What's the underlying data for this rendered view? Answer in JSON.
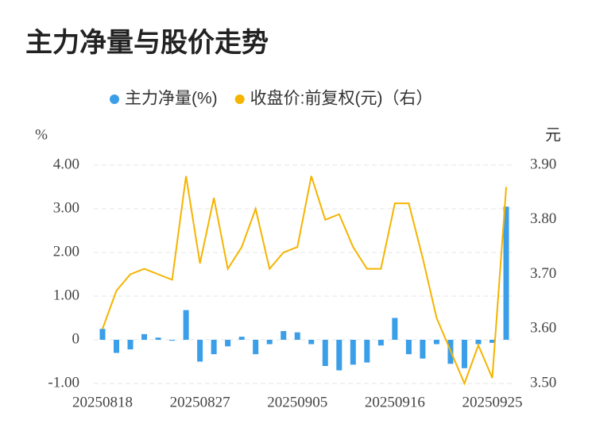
{
  "chart_data": {
    "type": "bar_line",
    "title": "主力净量与股价走势",
    "y_unit": "%",
    "y2_unit": "元",
    "categories": [
      "20250818",
      null,
      null,
      null,
      null,
      null,
      null,
      "20250827",
      null,
      null,
      null,
      null,
      null,
      null,
      "20250905",
      null,
      null,
      null,
      null,
      null,
      null,
      "20250916",
      null,
      null,
      null,
      null,
      null,
      null,
      "20250925",
      null
    ],
    "series": [
      {
        "name": "主力净量(%)",
        "type": "bar",
        "color": "#3a9ee8",
        "values": [
          0.25,
          -0.3,
          -0.22,
          0.13,
          0.05,
          -0.02,
          0.68,
          -0.5,
          -0.33,
          -0.15,
          0.07,
          -0.33,
          -0.1,
          0.2,
          0.17,
          -0.1,
          -0.6,
          -0.7,
          -0.57,
          -0.52,
          -0.13,
          0.5,
          -0.33,
          -0.43,
          -0.1,
          -0.55,
          -0.65,
          -0.1,
          -0.07,
          3.05
        ]
      },
      {
        "name": "收盘价:前复权(元)（右）",
        "type": "line",
        "axis": "y2",
        "color": "#f5b400",
        "values": [
          3.6,
          3.67,
          3.7,
          3.71,
          3.7,
          3.69,
          3.88,
          3.72,
          3.84,
          3.71,
          3.75,
          3.82,
          3.71,
          3.74,
          3.75,
          3.88,
          3.8,
          3.81,
          3.75,
          3.71,
          3.71,
          3.83,
          3.83,
          3.73,
          3.62,
          3.56,
          3.5,
          3.57,
          3.51,
          3.86
        ]
      }
    ],
    "ylim": [
      -1,
      4
    ],
    "yticks": [
      {
        "value": -1,
        "label": "-1.00"
      },
      0,
      {
        "value": 1,
        "label": "1.00"
      },
      {
        "value": 2,
        "label": "2.00"
      },
      {
        "value": 3,
        "label": "3.00"
      },
      {
        "value": 4,
        "label": "4.00"
      }
    ],
    "y2lim": [
      3.5,
      3.9
    ],
    "y2ticks": [
      {
        "value": 3.5,
        "label": "3.50"
      },
      {
        "value": 3.6,
        "label": "3.60"
      },
      {
        "value": 3.7,
        "label": "3.70"
      },
      {
        "value": 3.8,
        "label": "3.80"
      },
      {
        "value": 3.9,
        "label": "3.90"
      }
    ],
    "grid": true,
    "legend": "top"
  }
}
